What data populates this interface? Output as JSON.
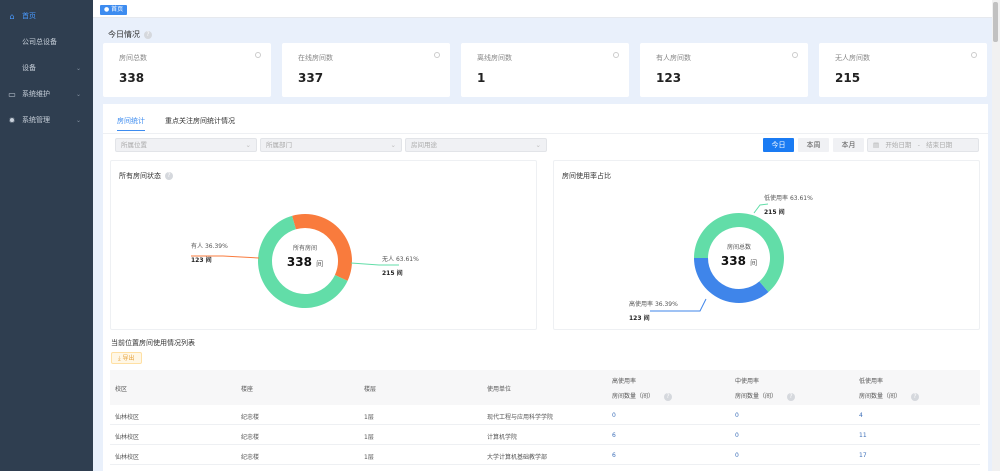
{
  "sidebar": {
    "items": [
      {
        "label": "首页",
        "icon": "home-icon",
        "active": true
      },
      {
        "label": "公司总设备"
      },
      {
        "label": "设备",
        "chevron": true
      },
      {
        "label": "系统维护",
        "icon": "monitor-icon",
        "chevron": true
      },
      {
        "label": "系统管理",
        "icon": "gear-icon",
        "chevron": true
      }
    ]
  },
  "breadcrumb": {
    "tag": "● 首页"
  },
  "today": {
    "title": "今日情况"
  },
  "cards": [
    {
      "label": "房间总数",
      "value": "338"
    },
    {
      "label": "在线房间数",
      "value": "337"
    },
    {
      "label": "离线房间数",
      "value": "1"
    },
    {
      "label": "有人房间数",
      "value": "123"
    },
    {
      "label": "无人房间数",
      "value": "215"
    }
  ],
  "tabs": [
    "房间统计",
    "重点关注房间统计情况"
  ],
  "filters": {
    "location": "所属位置",
    "department": "所属部门",
    "usage": "房间用途"
  },
  "time_buttons": [
    "今日",
    "本周",
    "本月"
  ],
  "daterange": {
    "icon": "calendar-icon",
    "start": "开始日期",
    "sep": "-",
    "end": "结束日期"
  },
  "chart_data": [
    {
      "type": "pie",
      "title": "所有房间状态",
      "center_label": "所有房间",
      "center_value": "338",
      "unit": "间",
      "slices": [
        {
          "name": "有人",
          "percent": "36.39%",
          "count": "123 间",
          "value": 123,
          "color": "#f97b3d"
        },
        {
          "name": "无人",
          "percent": "63.61%",
          "count": "215 间",
          "value": 215,
          "color": "#62dda8"
        }
      ]
    },
    {
      "type": "pie",
      "title": "房间使用率占比",
      "center_label": "房间总数",
      "center_value": "338",
      "unit": "间",
      "slices": [
        {
          "name": "高使用率",
          "percent": "36.39%",
          "count": "123 间",
          "value": 123,
          "color": "#3f85ea"
        },
        {
          "name": "低使用率",
          "percent": "63.61%",
          "count": "215 间",
          "value": 215,
          "color": "#62dda8"
        }
      ]
    }
  ],
  "table": {
    "title": "当前位置房间使用情况列表",
    "export": "⤓ 导出",
    "headers": [
      "校区",
      "楼座",
      "楼层",
      "使用单位",
      "高使用率",
      "中使用率",
      "低使用率"
    ],
    "subheader": "房间数量（间）",
    "rows": [
      [
        "仙林校区",
        "纪忠楼",
        "1层",
        "现代工程与应用科学学院",
        "0",
        "0",
        "4"
      ],
      [
        "仙林校区",
        "纪忠楼",
        "1层",
        "计算机学院",
        "6",
        "0",
        "11"
      ],
      [
        "仙林校区",
        "纪忠楼",
        "1层",
        "大学计算机基础教学部",
        "6",
        "0",
        "17"
      ]
    ]
  }
}
